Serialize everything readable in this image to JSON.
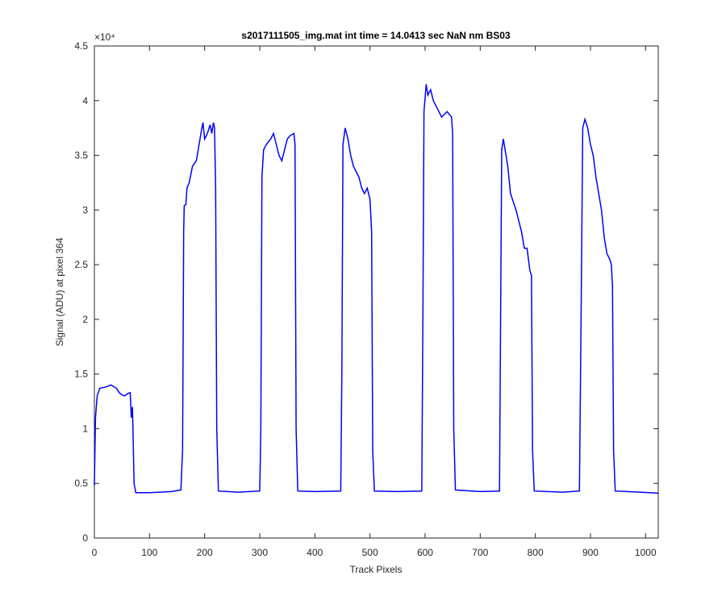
{
  "chart_data": {
    "type": "line",
    "title": "s2017111505_img.mat int time = 14.0413 sec  NaN nm BS03",
    "x_label": "Track Pixels",
    "y_label": "Signal (ADU) at pixel 364",
    "y_exponent": "×10⁴",
    "xlim": [
      0,
      1023
    ],
    "xticks": [
      0,
      100,
      200,
      300,
      400,
      500,
      600,
      700,
      800,
      900,
      1000
    ],
    "ylim": [
      0,
      4.5
    ],
    "yticks": [
      0,
      0.5,
      1,
      1.5,
      2,
      2.5,
      3,
      3.5,
      4,
      4.5
    ],
    "color": "#0000ff",
    "x": [
      0,
      2,
      5,
      10,
      20,
      30,
      40,
      45,
      50,
      55,
      60,
      65,
      67,
      69,
      70,
      72,
      75,
      100,
      140,
      157,
      160,
      162,
      163,
      166,
      168,
      172,
      178,
      185,
      190,
      195,
      197,
      200,
      205,
      210,
      213,
      216,
      218,
      220,
      222,
      225,
      260,
      300,
      302,
      304,
      307,
      312,
      320,
      325,
      330,
      335,
      340,
      345,
      350,
      355,
      362,
      364,
      366,
      369,
      400,
      447,
      449,
      451,
      455,
      460,
      465,
      470,
      475,
      480,
      485,
      490,
      495,
      500,
      503,
      505,
      508,
      550,
      594,
      596,
      598,
      602,
      605,
      610,
      615,
      620,
      625,
      630,
      640,
      648,
      650,
      652,
      655,
      700,
      735,
      737,
      739,
      742,
      750,
      755,
      765,
      775,
      780,
      785,
      790,
      793,
      795,
      798,
      850,
      880,
      883,
      886,
      890,
      895,
      900,
      905,
      910,
      915,
      920,
      925,
      930,
      935,
      938,
      940,
      942,
      945,
      990,
      1023
    ],
    "values": [
      0.48,
      1.1,
      1.3,
      1.37,
      1.38,
      1.4,
      1.37,
      1.33,
      1.31,
      1.3,
      1.32,
      1.33,
      1.1,
      1.2,
      1.0,
      0.5,
      0.415,
      0.415,
      0.425,
      0.44,
      0.8,
      2.8,
      3.04,
      3.05,
      3.2,
      3.25,
      3.4,
      3.45,
      3.6,
      3.75,
      3.8,
      3.65,
      3.7,
      3.78,
      3.7,
      3.8,
      3.75,
      3.2,
      1.0,
      0.43,
      0.42,
      0.43,
      1.0,
      3.3,
      3.55,
      3.6,
      3.65,
      3.7,
      3.6,
      3.5,
      3.45,
      3.55,
      3.65,
      3.68,
      3.7,
      3.6,
      1.0,
      0.43,
      0.425,
      0.43,
      1.5,
      3.6,
      3.75,
      3.65,
      3.5,
      3.4,
      3.35,
      3.3,
      3.2,
      3.15,
      3.2,
      3.1,
      2.8,
      0.8,
      0.43,
      0.425,
      0.43,
      2.0,
      3.9,
      4.15,
      4.05,
      4.1,
      4.0,
      3.95,
      3.9,
      3.85,
      3.9,
      3.85,
      3.7,
      1.0,
      0.44,
      0.425,
      0.43,
      2.0,
      3.55,
      3.65,
      3.4,
      3.15,
      3.0,
      2.8,
      2.65,
      2.65,
      2.45,
      2.4,
      0.8,
      0.43,
      0.42,
      0.43,
      2.0,
      3.75,
      3.83,
      3.75,
      3.6,
      3.5,
      3.3,
      3.15,
      3.0,
      2.75,
      2.6,
      2.55,
      2.5,
      2.3,
      0.8,
      0.43,
      0.42,
      0.41
    ]
  }
}
